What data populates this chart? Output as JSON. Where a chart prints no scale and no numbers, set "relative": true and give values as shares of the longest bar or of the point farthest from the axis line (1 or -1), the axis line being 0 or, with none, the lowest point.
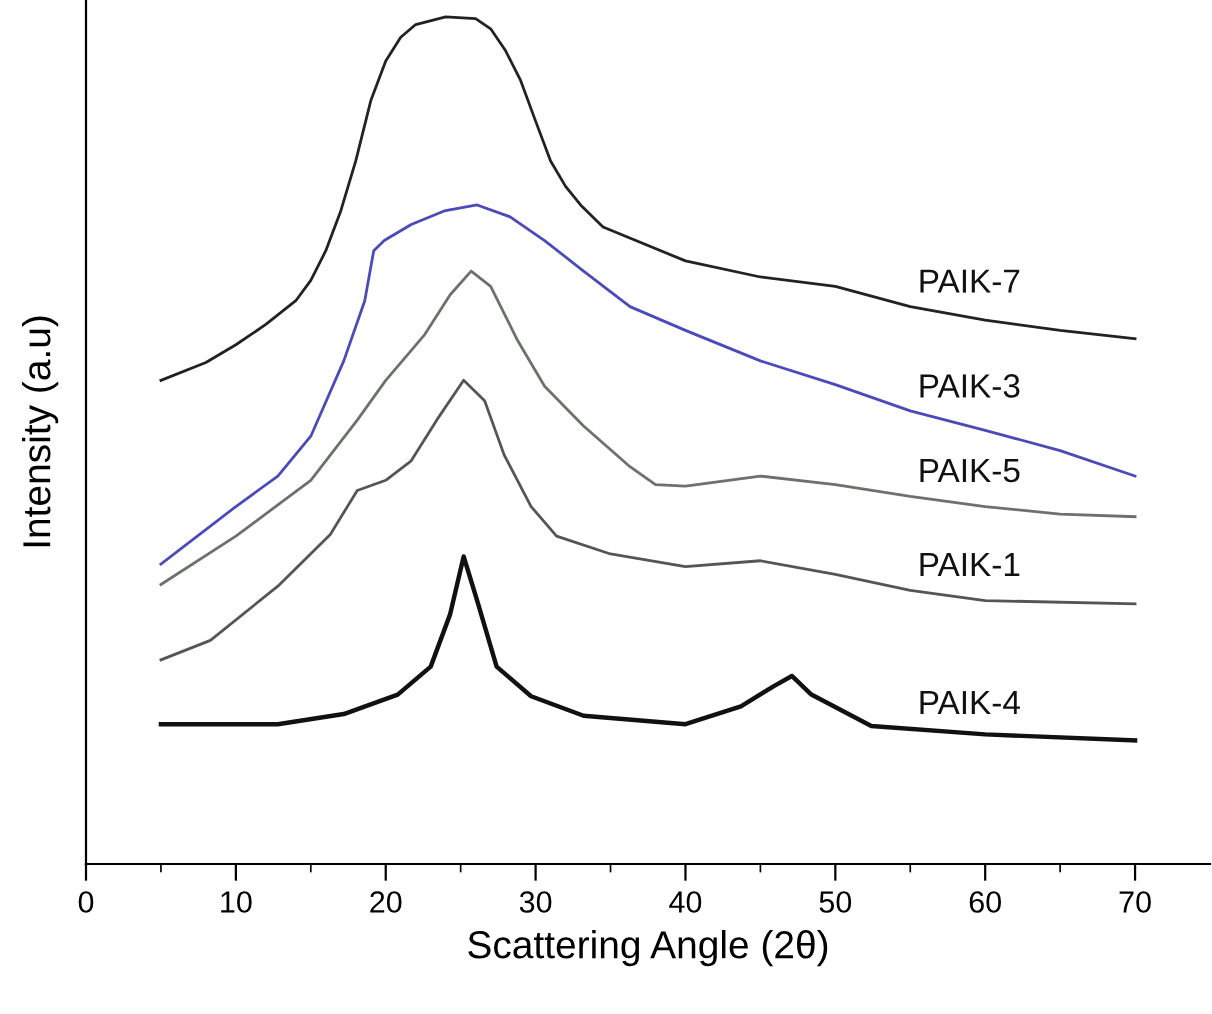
{
  "chart_data": {
    "type": "line",
    "relative": true,
    "xlabel": "Scattering Angle (2θ)",
    "ylabel": "Intensity (a.u)",
    "xlim": [
      0,
      75
    ],
    "xticks": [
      0,
      10,
      20,
      30,
      40,
      50,
      60,
      70
    ],
    "tick_labels": "x",
    "grid": false,
    "legend": false,
    "marker": "none",
    "line_style": "solid",
    "series": [
      {
        "name": "PAIK-7",
        "color": "#222222",
        "x": [
          5,
          8,
          10,
          12,
          14,
          15,
          16,
          17,
          18,
          19,
          20,
          21,
          22,
          24,
          26,
          27,
          28,
          29,
          30,
          31,
          32,
          33,
          34.5,
          40,
          45,
          50,
          55,
          60,
          65,
          70
        ],
        "values": [
          0.571,
          0.592,
          0.613,
          0.637,
          0.665,
          0.689,
          0.724,
          0.771,
          0.83,
          0.901,
          0.948,
          0.976,
          0.991,
          1.0,
          0.998,
          0.986,
          0.96,
          0.925,
          0.877,
          0.83,
          0.8,
          0.778,
          0.752,
          0.712,
          0.693,
          0.682,
          0.658,
          0.642,
          0.63,
          0.62
        ]
      },
      {
        "name": "PAIK-3",
        "color": "#4a4ab8",
        "x": [
          5,
          10,
          12.8,
          15,
          17.2,
          18.6,
          19.2,
          19.9,
          21.7,
          23.9,
          26.1,
          28.3,
          30.6,
          33.2,
          36.3,
          40,
          45,
          50,
          55,
          60,
          65,
          70
        ],
        "values": [
          0.354,
          0.422,
          0.458,
          0.505,
          0.594,
          0.665,
          0.724,
          0.736,
          0.755,
          0.771,
          0.778,
          0.764,
          0.736,
          0.7,
          0.658,
          0.63,
          0.594,
          0.566,
          0.535,
          0.512,
          0.488,
          0.458
        ]
      },
      {
        "name": "PAIK-5",
        "color": "#6a726a",
        "x": [
          5,
          10,
          15,
          18.1,
          20,
          22.6,
          24.3,
          25.7,
          27,
          28.8,
          30.6,
          33.2,
          36.3,
          38,
          40,
          45,
          50,
          55,
          60,
          65,
          70
        ],
        "values": [
          0.33,
          0.387,
          0.453,
          0.524,
          0.571,
          0.625,
          0.672,
          0.7,
          0.682,
          0.618,
          0.564,
          0.517,
          0.469,
          0.448,
          0.446,
          0.458,
          0.448,
          0.434,
          0.422,
          0.413,
          0.41
        ]
      },
      {
        "name": "PAIK-1",
        "color": "#555555",
        "x": [
          5,
          8.3,
          12.8,
          16.3,
          18.1,
          20,
          21.7,
          23.4,
          25.2,
          26.6,
          27.9,
          29.7,
          31.4,
          35,
          40,
          45,
          50,
          55,
          60,
          70
        ],
        "values": [
          0.241,
          0.264,
          0.328,
          0.389,
          0.441,
          0.453,
          0.476,
          0.524,
          0.571,
          0.547,
          0.483,
          0.422,
          0.387,
          0.366,
          0.351,
          0.358,
          0.342,
          0.323,
          0.311,
          0.307
        ]
      },
      {
        "name": "PAIK-4",
        "color": "#111111",
        "x": [
          5,
          12.8,
          17.2,
          20.8,
          23,
          24.3,
          25.2,
          26.1,
          27.4,
          29.7,
          33.2,
          40,
          43.7,
          45.9,
          47.1,
          48.4,
          52.4,
          60,
          70
        ],
        "values": [
          0.165,
          0.165,
          0.177,
          0.2,
          0.233,
          0.295,
          0.363,
          0.311,
          0.233,
          0.198,
          0.175,
          0.165,
          0.186,
          0.21,
          0.222,
          0.2,
          0.163,
          0.153,
          0.146
        ]
      }
    ]
  }
}
